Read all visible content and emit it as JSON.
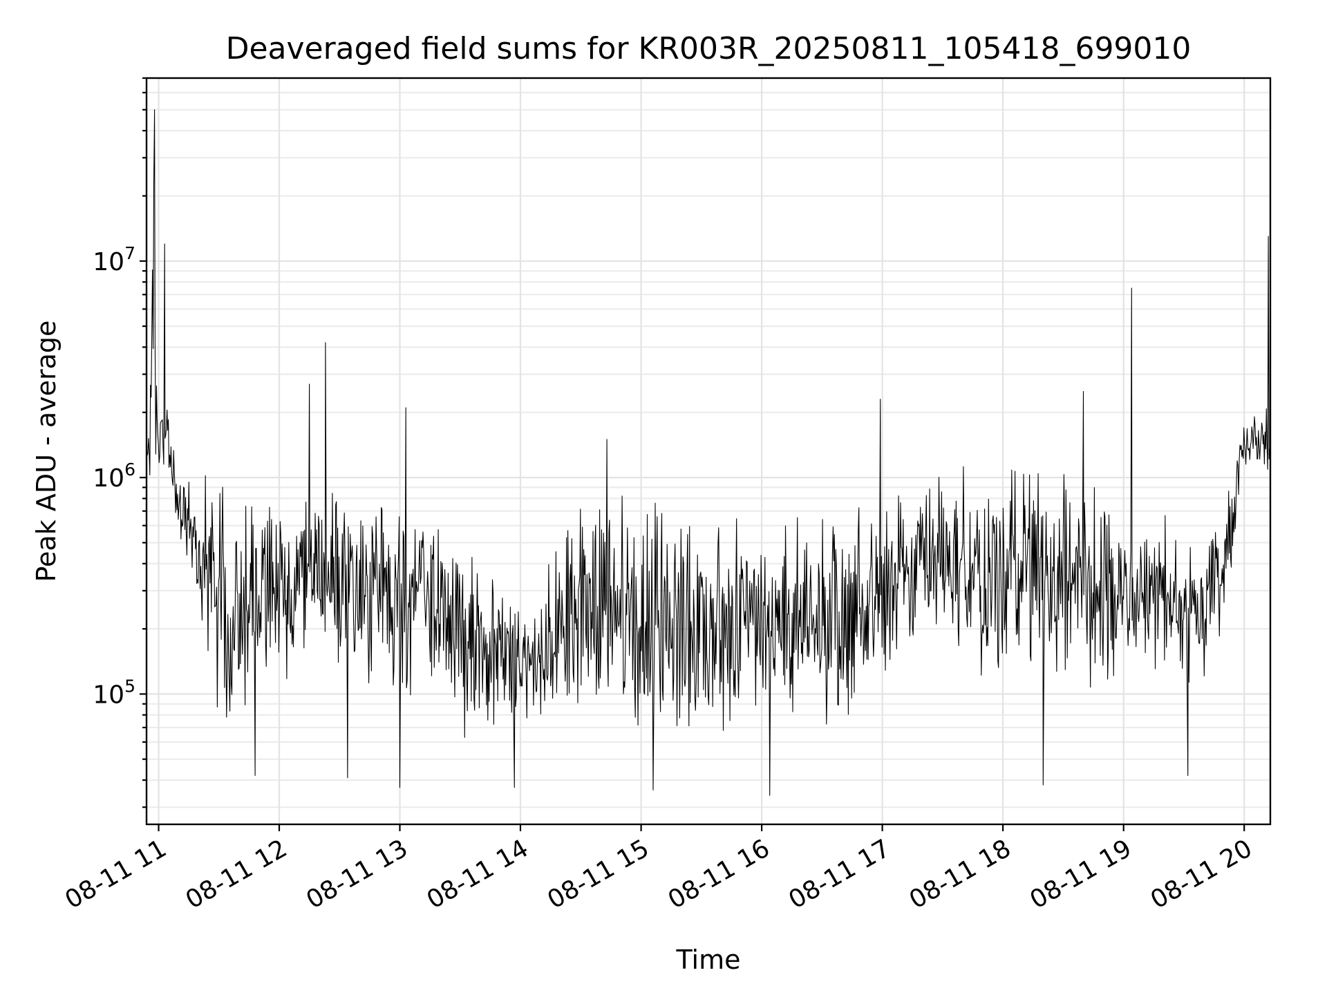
{
  "chart_data": {
    "type": "line",
    "title": "Deaveraged field sums for KR003R_20250811_105418_699010",
    "xlabel": "Time",
    "ylabel": "Peak ADU - average",
    "x_scale": "time",
    "y_scale": "log",
    "xlim": [
      "2025-08-11 10:54",
      "2025-08-11 20:13"
    ],
    "ylim": [
      25000,
      70000000
    ],
    "x_ticks": [
      "08-11 11",
      "08-11 12",
      "08-11 13",
      "08-11 14",
      "08-11 15",
      "08-11 16",
      "08-11 17",
      "08-11 18",
      "08-11 19",
      "08-11 20"
    ],
    "y_ticks": [
      {
        "value": 100000,
        "base": "10",
        "exp": "5"
      },
      {
        "value": 1000000,
        "base": "10",
        "exp": "6"
      },
      {
        "value": 10000000,
        "base": "10",
        "exp": "7"
      }
    ],
    "grid": true,
    "line_color": "#000000",
    "series": [
      {
        "sampling": "approximate envelope read off the plot, one band per span; points are sampled inside each band",
        "x": [
          "2025-08-11 10:54",
          "2025-08-11 10:56",
          "2025-08-11 10:58",
          "2025-08-11 11:00",
          "2025-08-11 11:05",
          "2025-08-11 11:10",
          "2025-08-11 11:20",
          "2025-08-11 11:30",
          "2025-08-11 11:40",
          "2025-08-11 12:00",
          "2025-08-11 12:20",
          "2025-08-11 12:40",
          "2025-08-11 13:00",
          "2025-08-11 13:20",
          "2025-08-11 13:40",
          "2025-08-11 14:00",
          "2025-08-11 14:20",
          "2025-08-11 14:40",
          "2025-08-11 15:00",
          "2025-08-11 15:20",
          "2025-08-11 15:40",
          "2025-08-11 16:00",
          "2025-08-11 16:20",
          "2025-08-11 16:40",
          "2025-08-11 17:00",
          "2025-08-11 17:20",
          "2025-08-11 17:40",
          "2025-08-11 18:00",
          "2025-08-11 18:20",
          "2025-08-11 18:40",
          "2025-08-11 19:00",
          "2025-08-11 19:20",
          "2025-08-11 19:40",
          "2025-08-11 19:50",
          "2025-08-11 20:00",
          "2025-08-11 20:10",
          "2025-08-11 20:13"
        ],
        "lo": [
          900000,
          800000,
          1000000,
          900000,
          900000,
          500000,
          200000,
          80000,
          60000,
          100000,
          150000,
          100000,
          100000,
          70000,
          50000,
          60000,
          80000,
          60000,
          50000,
          50000,
          60000,
          70000,
          70000,
          60000,
          80000,
          150000,
          120000,
          100000,
          100000,
          90000,
          120000,
          120000,
          100000,
          150000,
          1000000,
          1100000,
          700000
        ],
        "hi": [
          2000000,
          4000000,
          40000000,
          2500000,
          2200000,
          1200000,
          1200000,
          1200000,
          1300000,
          1000000,
          1000000,
          900000,
          900000,
          700000,
          500000,
          300000,
          600000,
          1200000,
          800000,
          900000,
          800000,
          700000,
          800000,
          700000,
          1000000,
          1200000,
          1300000,
          1200000,
          1300000,
          1200000,
          800000,
          700000,
          600000,
          800000,
          2000000,
          2200000,
          2000000
        ]
      }
    ],
    "spikes": [
      {
        "x": "2025-08-11 10:58",
        "y": 50000000
      },
      {
        "x": "2025-08-11 11:03",
        "y": 12000000
      },
      {
        "x": "2025-08-11 12:15",
        "y": 2700000
      },
      {
        "x": "2025-08-11 12:23",
        "y": 4200000
      },
      {
        "x": "2025-08-11 13:03",
        "y": 2100000
      },
      {
        "x": "2025-08-11 14:43",
        "y": 1500000
      },
      {
        "x": "2025-08-11 16:59",
        "y": 2300000
      },
      {
        "x": "2025-08-11 18:40",
        "y": 2500000
      },
      {
        "x": "2025-08-11 19:04",
        "y": 7500000
      },
      {
        "x": "2025-08-11 20:12",
        "y": 13000000
      }
    ],
    "dips": [
      {
        "x": "2025-08-11 11:48",
        "y": 42000
      },
      {
        "x": "2025-08-11 12:34",
        "y": 41000
      },
      {
        "x": "2025-08-11 13:00",
        "y": 37000
      },
      {
        "x": "2025-08-11 13:57",
        "y": 37000
      },
      {
        "x": "2025-08-11 15:06",
        "y": 36000
      },
      {
        "x": "2025-08-11 16:04",
        "y": 34000
      },
      {
        "x": "2025-08-11 18:20",
        "y": 38000
      },
      {
        "x": "2025-08-11 19:32",
        "y": 42000
      }
    ]
  }
}
